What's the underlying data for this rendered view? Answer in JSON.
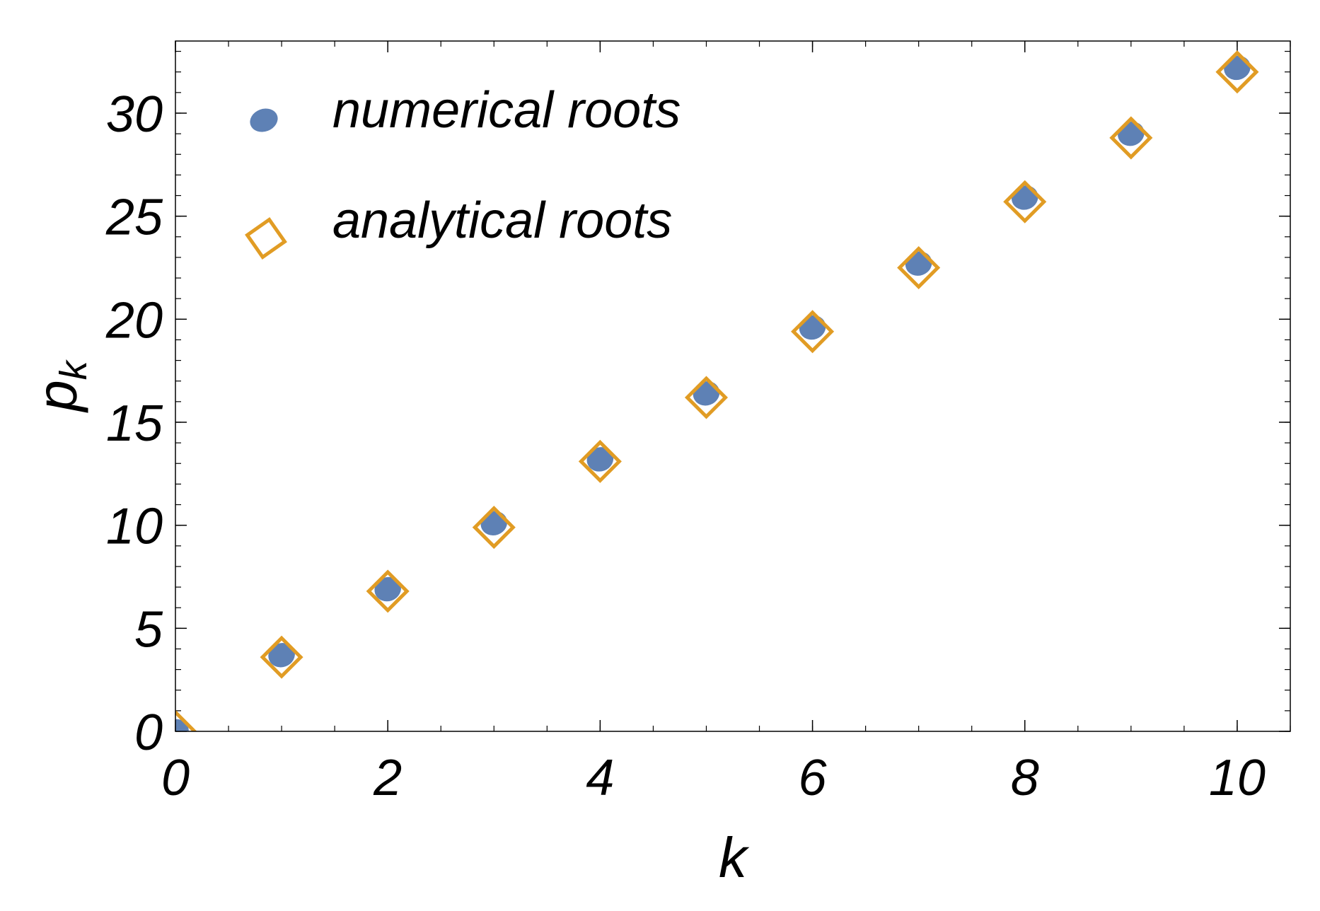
{
  "chart_data": {
    "type": "scatter",
    "xlabel": "k",
    "ylabel": "p",
    "ylabel_sub": "k",
    "xlim": [
      0,
      10.5
    ],
    "ylim": [
      0,
      33.5
    ],
    "x_ticks": [
      0,
      2,
      4,
      6,
      8,
      10
    ],
    "y_ticks": [
      0,
      5,
      10,
      15,
      20,
      25,
      30
    ],
    "grid": false,
    "legend_position": "top-left",
    "series": [
      {
        "name": "numerical roots",
        "marker": "filled-circle",
        "color": "#5E81B5",
        "x": [
          0,
          1,
          2,
          3,
          4,
          5,
          6,
          7,
          8,
          9,
          10
        ],
        "y": [
          0,
          3.7,
          6.9,
          10.1,
          13.2,
          16.4,
          19.6,
          22.7,
          25.9,
          29.0,
          32.2
        ]
      },
      {
        "name": "analytical roots",
        "marker": "open-diamond",
        "color": "#E19C24",
        "x": [
          0,
          1,
          2,
          3,
          4,
          5,
          6,
          7,
          8,
          9,
          10
        ],
        "y": [
          0,
          3.6,
          6.8,
          9.9,
          13.1,
          16.2,
          19.4,
          22.5,
          25.7,
          28.8,
          32.0
        ]
      }
    ]
  }
}
